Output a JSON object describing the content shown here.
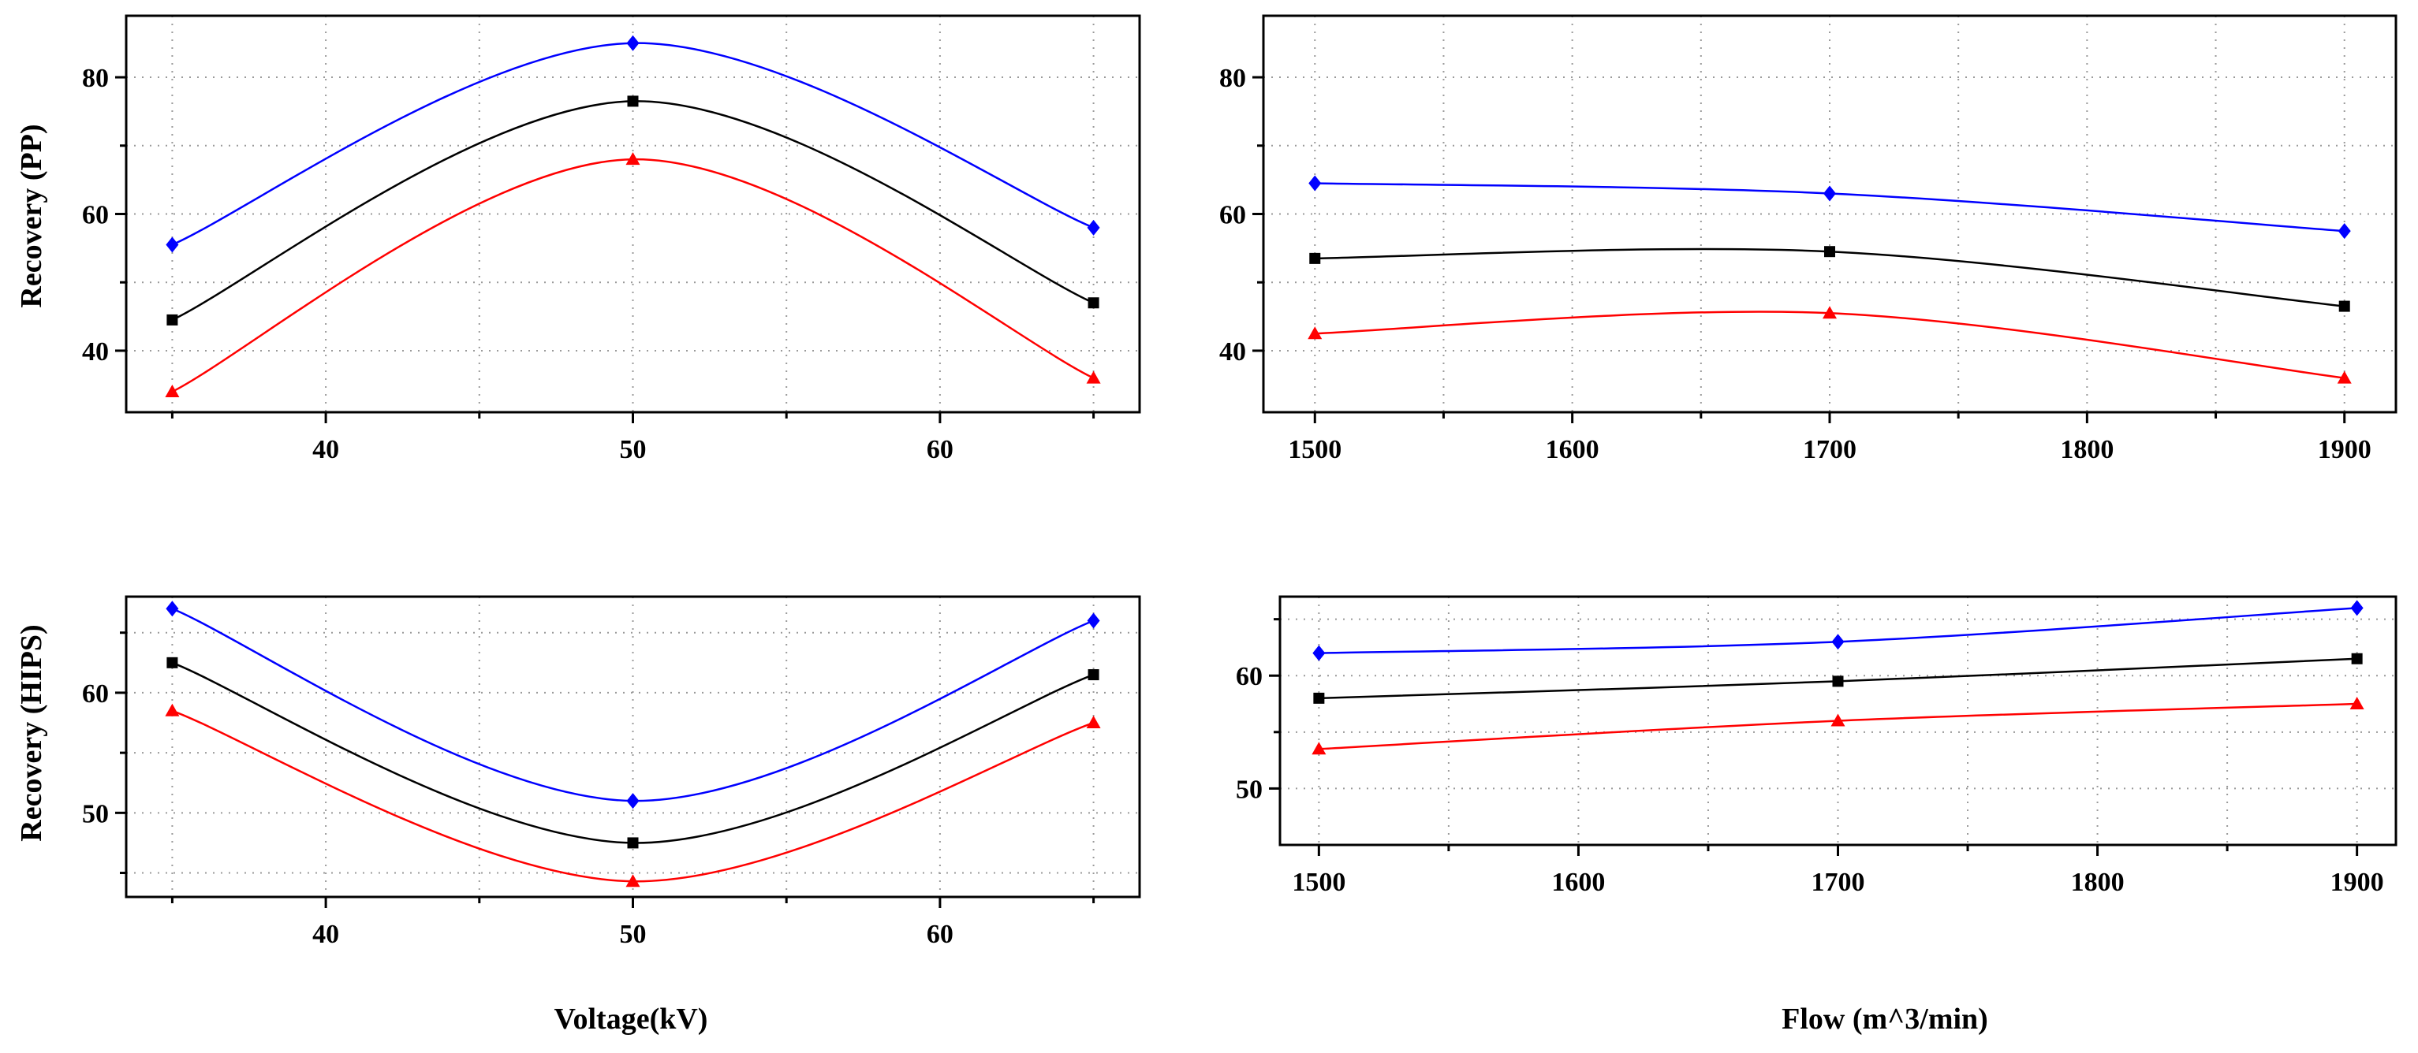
{
  "colors": {
    "upper": "#0000ff",
    "mid": "#000000",
    "lower": "#ff0000",
    "grid": "#9a9a9a",
    "frame": "#000000"
  },
  "axis_titles": {
    "pp_recovery": "Recovery (PP)",
    "hips_recovery": "Recovery (HIPS)",
    "voltage": "Voltage(kV)",
    "flow": "Flow (m^3/min)"
  },
  "chart_data": [
    {
      "id": "pp-voltage",
      "type": "line",
      "xlabel": "",
      "ylabel": "Recovery (PP)",
      "xlim": [
        33.5,
        66.5
      ],
      "ylim": [
        31,
        89
      ],
      "xticks_major": [
        40,
        50,
        60
      ],
      "xticks_minor": [
        35,
        45,
        55,
        65
      ],
      "yticks_major": [
        40,
        60,
        80
      ],
      "yticks_minor": [
        50,
        70
      ],
      "x": [
        35,
        50,
        65
      ],
      "series": [
        {
          "name": "upper",
          "color": "#0000ff",
          "marker": "diamond",
          "values": [
            55.5,
            85.0,
            58.0
          ]
        },
        {
          "name": "mid",
          "color": "#000000",
          "marker": "square",
          "values": [
            44.5,
            76.5,
            47.0
          ]
        },
        {
          "name": "lower",
          "color": "#ff0000",
          "marker": "triangle",
          "values": [
            34.0,
            68.0,
            36.0
          ]
        }
      ]
    },
    {
      "id": "pp-flow",
      "type": "line",
      "xlabel": "",
      "ylabel": "",
      "xlim": [
        1480,
        1920
      ],
      "ylim": [
        31,
        89
      ],
      "xticks_major": [
        1500,
        1600,
        1700,
        1800,
        1900
      ],
      "xticks_minor": [
        1550,
        1650,
        1750,
        1850
      ],
      "yticks_major": [
        40,
        60,
        80
      ],
      "yticks_minor": [
        50,
        70
      ],
      "x": [
        1500,
        1700,
        1900
      ],
      "series": [
        {
          "name": "upper",
          "color": "#0000ff",
          "marker": "diamond",
          "values": [
            64.5,
            63.0,
            57.5
          ]
        },
        {
          "name": "mid",
          "color": "#000000",
          "marker": "square",
          "values": [
            53.5,
            54.5,
            46.5
          ]
        },
        {
          "name": "lower",
          "color": "#ff0000",
          "marker": "triangle",
          "values": [
            42.5,
            45.5,
            36.0
          ]
        }
      ]
    },
    {
      "id": "hips-voltage",
      "type": "line",
      "xlabel": "Voltage(kV)",
      "ylabel": "Recovery (HIPS)",
      "xlim": [
        33.5,
        66.5
      ],
      "ylim": [
        43,
        68
      ],
      "xticks_major": [
        40,
        50,
        60
      ],
      "xticks_minor": [
        35,
        45,
        55,
        65
      ],
      "yticks_major": [
        50,
        60
      ],
      "yticks_minor": [
        45,
        55,
        65
      ],
      "x": [
        35,
        50,
        65
      ],
      "series": [
        {
          "name": "upper",
          "color": "#0000ff",
          "marker": "diamond",
          "values": [
            67.0,
            51.0,
            66.0
          ]
        },
        {
          "name": "mid",
          "color": "#000000",
          "marker": "square",
          "values": [
            62.5,
            47.5,
            61.5
          ]
        },
        {
          "name": "lower",
          "color": "#ff0000",
          "marker": "triangle",
          "values": [
            58.5,
            44.3,
            57.5
          ]
        }
      ]
    },
    {
      "id": "hips-flow",
      "type": "line",
      "xlabel": "Flow (m^3/min)",
      "ylabel": "",
      "xlim": [
        1485,
        1915
      ],
      "ylim": [
        45,
        67
      ],
      "xticks_major": [
        1500,
        1600,
        1700,
        1800,
        1900
      ],
      "xticks_minor": [
        1550,
        1650,
        1750,
        1850
      ],
      "yticks_major": [
        50,
        60
      ],
      "yticks_minor": [
        55,
        65
      ],
      "x": [
        1500,
        1700,
        1900
      ],
      "series": [
        {
          "name": "upper",
          "color": "#0000ff",
          "marker": "diamond",
          "values": [
            62.0,
            63.0,
            66.0
          ]
        },
        {
          "name": "mid",
          "color": "#000000",
          "marker": "square",
          "values": [
            58.0,
            59.5,
            61.5
          ]
        },
        {
          "name": "lower",
          "color": "#ff0000",
          "marker": "triangle",
          "values": [
            53.5,
            56.0,
            57.5
          ]
        }
      ]
    }
  ]
}
